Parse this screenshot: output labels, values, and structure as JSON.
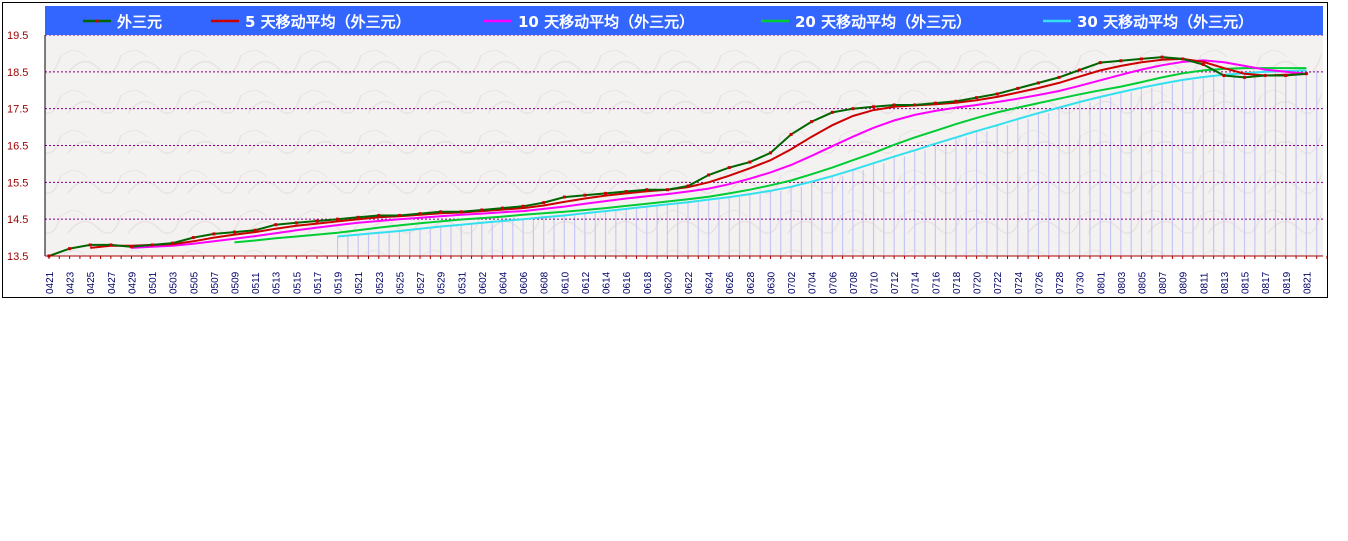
{
  "chart_data": {
    "type": "line",
    "ylim": [
      13.5,
      19.5
    ],
    "y_ticks": [
      "19.5",
      "18.5",
      "17.5",
      "16.5",
      "15.5",
      "14.5",
      "13.5"
    ],
    "grid": true,
    "legend_position": "top",
    "x_tick_labels": [
      "0421",
      "0423",
      "0425",
      "0427",
      "0429",
      "0501",
      "0503",
      "0505",
      "0507",
      "0509",
      "0511",
      "0513",
      "0515",
      "0517",
      "0519",
      "0521",
      "0523",
      "0525",
      "0527",
      "0529",
      "0531",
      "0602",
      "0604",
      "0606",
      "0608",
      "0610",
      "0612",
      "0614",
      "0616",
      "0618",
      "0620",
      "0622",
      "0624",
      "0626",
      "0628",
      "0630",
      "0702",
      "0704",
      "0706",
      "0708",
      "0710",
      "0712",
      "0714",
      "0716",
      "0718",
      "0720",
      "0722",
      "0724",
      "0726",
      "0728",
      "0730",
      "0801",
      "0803",
      "0805",
      "0807",
      "0809",
      "0811",
      "0813",
      "0815",
      "0817",
      "0819",
      "0821"
    ],
    "series": [
      {
        "name": "外三元",
        "color": "#cc0000",
        "line_color": "#006600",
        "marker": true,
        "values": [
          13.5,
          13.7,
          13.8,
          13.8,
          13.75,
          13.8,
          13.85,
          14.0,
          14.1,
          14.15,
          14.2,
          14.35,
          14.4,
          14.45,
          14.5,
          14.55,
          14.6,
          14.6,
          14.65,
          14.7,
          14.7,
          14.75,
          14.8,
          14.85,
          14.95,
          15.1,
          15.15,
          15.2,
          15.25,
          15.3,
          15.3,
          15.4,
          15.7,
          15.9,
          16.05,
          16.3,
          16.8,
          17.15,
          17.4,
          17.5,
          17.55,
          17.6,
          17.6,
          17.65,
          17.7,
          17.8,
          17.9,
          18.05,
          18.2,
          18.35,
          18.55,
          18.75,
          18.8,
          18.85,
          18.9,
          18.85,
          18.7,
          18.4,
          18.35,
          18.4,
          18.4,
          18.45
        ]
      },
      {
        "name": "5 天移动平均（外三元）",
        "color": "#cc0000",
        "values": [
          null,
          null,
          13.72,
          13.78,
          13.78,
          13.8,
          13.82,
          13.9,
          14.0,
          14.08,
          14.15,
          14.24,
          14.32,
          14.38,
          14.44,
          14.5,
          14.55,
          14.58,
          14.62,
          14.66,
          14.68,
          14.72,
          14.76,
          14.8,
          14.87,
          14.97,
          15.06,
          15.14,
          15.2,
          15.26,
          15.3,
          15.37,
          15.5,
          15.68,
          15.88,
          16.1,
          16.4,
          16.74,
          17.05,
          17.3,
          17.46,
          17.55,
          17.59,
          17.62,
          17.66,
          17.73,
          17.82,
          17.94,
          18.06,
          18.2,
          18.37,
          18.54,
          18.66,
          18.76,
          18.83,
          18.85,
          18.77,
          18.6,
          18.45,
          18.4,
          18.42,
          18.44
        ]
      },
      {
        "name": "10 天移动平均（外三元）",
        "color": "#ff00ff",
        "values": [
          null,
          null,
          null,
          null,
          13.72,
          13.75,
          13.78,
          13.83,
          13.9,
          13.97,
          14.04,
          14.12,
          14.2,
          14.27,
          14.34,
          14.4,
          14.45,
          14.5,
          14.54,
          14.58,
          14.62,
          14.65,
          14.69,
          14.72,
          14.78,
          14.84,
          14.92,
          14.99,
          15.06,
          15.12,
          15.18,
          15.25,
          15.33,
          15.45,
          15.6,
          15.77,
          15.97,
          16.22,
          16.48,
          16.74,
          16.98,
          17.18,
          17.33,
          17.44,
          17.53,
          17.6,
          17.68,
          17.77,
          17.87,
          17.98,
          18.12,
          18.27,
          18.42,
          18.56,
          18.68,
          18.77,
          18.81,
          18.76,
          18.66,
          18.56,
          18.5,
          18.45
        ]
      },
      {
        "name": "20 天移动平均（外三元）",
        "color": "#00cc33",
        "values": [
          null,
          null,
          null,
          null,
          null,
          null,
          null,
          null,
          null,
          13.87,
          13.92,
          13.98,
          14.03,
          14.08,
          14.13,
          14.2,
          14.27,
          14.33,
          14.39,
          14.44,
          14.49,
          14.53,
          14.57,
          14.62,
          14.66,
          14.7,
          14.75,
          14.8,
          14.86,
          14.92,
          14.98,
          15.04,
          15.11,
          15.2,
          15.3,
          15.42,
          15.55,
          15.72,
          15.9,
          16.1,
          16.3,
          16.52,
          16.72,
          16.9,
          17.08,
          17.25,
          17.4,
          17.53,
          17.65,
          17.77,
          17.89,
          18.0,
          18.1,
          18.22,
          18.35,
          18.46,
          18.54,
          18.58,
          18.6,
          18.6,
          18.6,
          18.6
        ]
      },
      {
        "name": "30 天移动平均（外三元）",
        "color": "#33e0ee",
        "values": [
          null,
          null,
          null,
          null,
          null,
          null,
          null,
          null,
          null,
          null,
          null,
          null,
          null,
          null,
          14.03,
          14.08,
          14.13,
          14.18,
          14.24,
          14.3,
          14.35,
          14.4,
          14.45,
          14.5,
          14.55,
          14.6,
          14.66,
          14.72,
          14.78,
          14.84,
          14.9,
          14.96,
          15.03,
          15.1,
          15.18,
          15.27,
          15.38,
          15.52,
          15.67,
          15.84,
          16.02,
          16.2,
          16.37,
          16.55,
          16.72,
          16.89,
          17.05,
          17.22,
          17.38,
          17.53,
          17.68,
          17.82,
          17.95,
          18.07,
          18.18,
          18.28,
          18.36,
          18.42,
          18.46,
          18.5,
          18.52,
          18.54
        ]
      }
    ]
  }
}
